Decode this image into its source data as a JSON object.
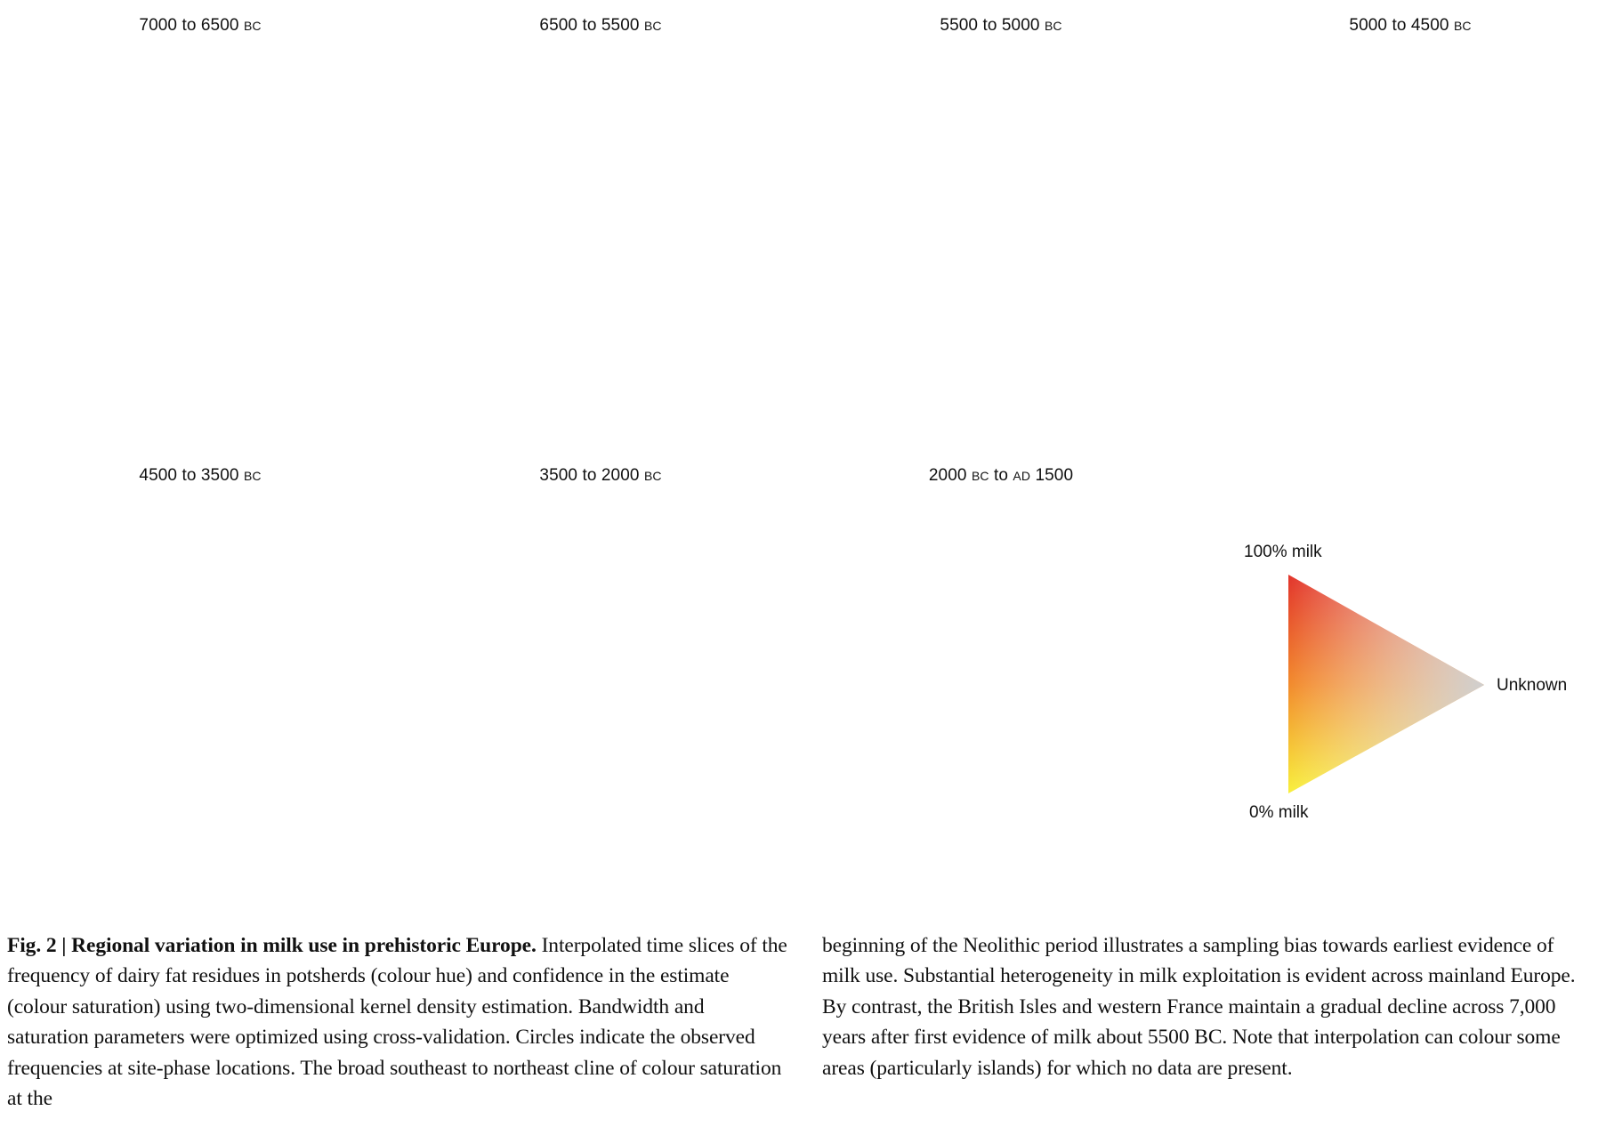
{
  "figure": {
    "panels": [
      {
        "title_a": "7000 to 6500 ",
        "title_b": "BC",
        "title_c": "",
        "title_d": "",
        "title_e": "",
        "state": "early"
      },
      {
        "title_a": "6500 to 5500 ",
        "title_b": "BC",
        "title_c": "",
        "title_d": "",
        "title_e": "",
        "state": "mid"
      },
      {
        "title_a": "5500 to 5000 ",
        "title_b": "BC",
        "title_c": "",
        "title_d": "",
        "title_e": "",
        "state": "full"
      },
      {
        "title_a": "5000 to 4500 ",
        "title_b": "BC",
        "title_c": "",
        "title_d": "",
        "title_e": "",
        "state": "full"
      },
      {
        "title_a": "4500 to 3500 ",
        "title_b": "BC",
        "title_c": "",
        "title_d": "",
        "title_e": "",
        "state": "full"
      },
      {
        "title_a": "3500 to 2000 ",
        "title_b": "BC",
        "title_c": "",
        "title_d": "",
        "title_e": "",
        "state": "full"
      },
      {
        "title_a": "2000 ",
        "title_b": "BC",
        "title_c": " to ",
        "title_d": "AD",
        "title_e": " 1500",
        "state": "late"
      }
    ],
    "legend": {
      "top_label": "100% milk",
      "right_label": "Unknown",
      "bottom_label": "0% milk",
      "colors": {
        "high": "#e23a2c",
        "low": "#f7ee3c",
        "unknown": "#c9c9c9",
        "mid": "#f2962c"
      }
    }
  },
  "caption": {
    "figure_label": "Fig. 2 | Regional variation in milk use in prehistoric Europe.",
    "left_text": " Interpolated time slices of the frequency of dairy fat residues in potsherds (colour hue) and confidence in the estimate (colour saturation) using two-dimensional kernel density estimation. Bandwidth and saturation parameters were optimized using cross-validation. Circles indicate the observed frequencies at site-phase locations. The broad southeast to northeast cline of colour saturation at the",
    "right_text": "beginning of the Neolithic period illustrates a sampling bias towards earliest evidence of milk use. Substantial heterogeneity in milk exploitation is evident across mainland Europe. By contrast, the British Isles and western France maintain a gradual decline across 7,000 years after first evidence of milk about 5500 BC. Note that interpolation can colour some areas (particularly islands) for which no data are present."
  }
}
